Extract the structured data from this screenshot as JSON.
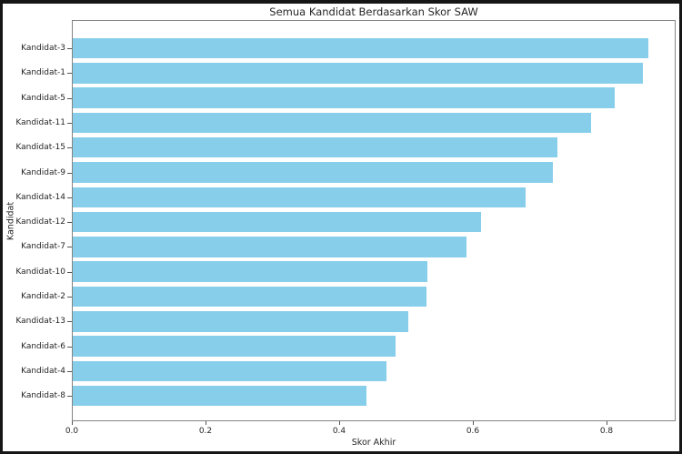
{
  "window": {
    "border_color": "#161616",
    "background_color": "#ffffff"
  },
  "chart_data": {
    "type": "bar",
    "orientation": "horizontal",
    "title": "Semua Kandidat Berdasarkan Skor SAW",
    "xlabel": "Skor Akhir",
    "ylabel": "Kandidat",
    "categories": [
      "Kandidat-3",
      "Kandidat-1",
      "Kandidat-5",
      "Kandidat-11",
      "Kandidat-15",
      "Kandidat-9",
      "Kandidat-14",
      "Kandidat-12",
      "Kandidat-7",
      "Kandidat-10",
      "Kandidat-2",
      "Kandidat-13",
      "Kandidat-6",
      "Kandidat-4",
      "Kandidat-8"
    ],
    "values": [
      0.861,
      0.853,
      0.811,
      0.776,
      0.725,
      0.718,
      0.678,
      0.611,
      0.589,
      0.53,
      0.529,
      0.502,
      0.483,
      0.47,
      0.439
    ],
    "x_ticks": [
      {
        "value": 0.0,
        "label": "0.0"
      },
      {
        "value": 0.2,
        "label": "0.2"
      },
      {
        "value": 0.4,
        "label": "0.4"
      },
      {
        "value": 0.6,
        "label": "0.6"
      },
      {
        "value": 0.8,
        "label": "0.8"
      }
    ],
    "xlim": [
      0,
      0.903
    ],
    "grid": false,
    "legend": null,
    "bar_color": "#87CEEB",
    "spine_color": "#848484",
    "text_color": "#262626"
  }
}
